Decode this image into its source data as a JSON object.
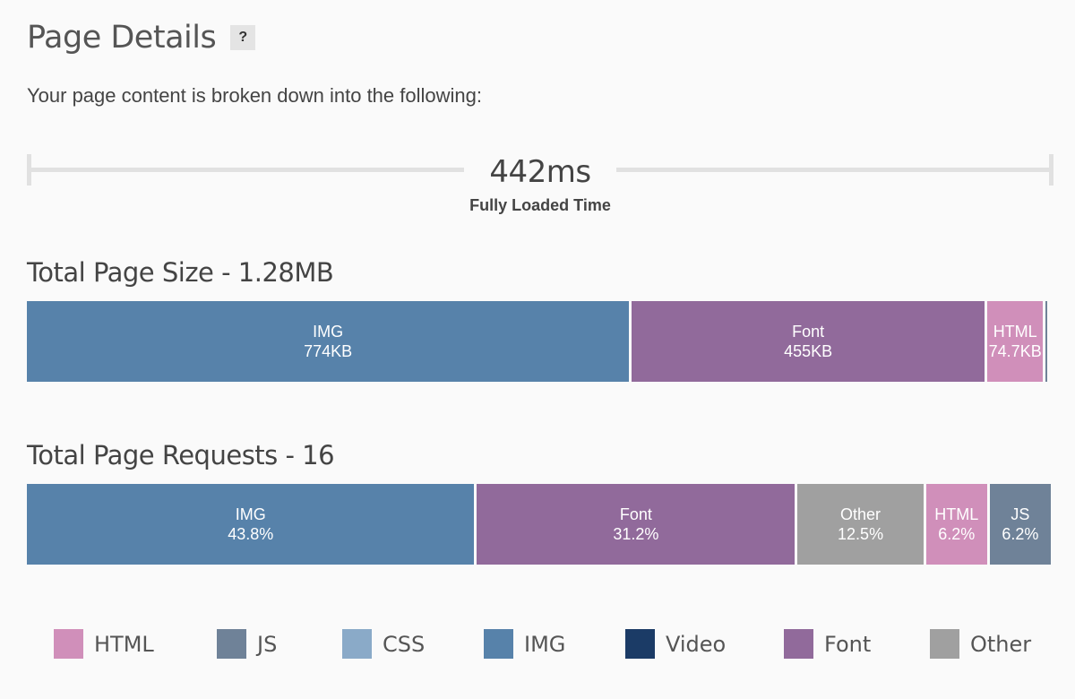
{
  "header": {
    "title": "Page Details",
    "help_label": "?",
    "subtitle": "Your page content is broken down into the following:"
  },
  "timing": {
    "value": "442ms",
    "label": "Fully Loaded Time"
  },
  "colors": {
    "HTML": "#d08fba",
    "JS": "#6f8298",
    "CSS": "#8aaac8",
    "IMG": "#5782aa",
    "Video": "#1b3b66",
    "Font": "#916a9b",
    "Other": "#a0a0a0"
  },
  "chart_data": [
    {
      "type": "bar",
      "title": "Total Page Size - 1.28MB",
      "orientation": "horizontal-stacked",
      "segments": [
        {
          "category": "IMG",
          "label": "IMG",
          "value_label": "774KB",
          "value": 774
        },
        {
          "category": "Font",
          "label": "Font",
          "value_label": "455KB",
          "value": 455
        },
        {
          "category": "HTML",
          "label": "HTML",
          "value_label": "74.7KB",
          "value": 74.7
        },
        {
          "category": "JS",
          "label": "",
          "value_label": "",
          "value": 6
        },
        {
          "category": "Other",
          "label": "",
          "value_label": "",
          "value": 4
        }
      ]
    },
    {
      "type": "bar",
      "title": "Total Page Requests - 16",
      "orientation": "horizontal-stacked",
      "segments": [
        {
          "category": "IMG",
          "label": "IMG",
          "value_label": "43.8%",
          "value": 43.8
        },
        {
          "category": "Font",
          "label": "Font",
          "value_label": "31.2%",
          "value": 31.2
        },
        {
          "category": "Other",
          "label": "Other",
          "value_label": "12.5%",
          "value": 12.5
        },
        {
          "category": "HTML",
          "label": "HTML",
          "value_label": "6.2%",
          "value": 6.2
        },
        {
          "category": "JS",
          "label": "JS",
          "value_label": "6.2%",
          "value": 6.2
        }
      ]
    }
  ],
  "legend": [
    {
      "label": "HTML",
      "icon": "html-swatch"
    },
    {
      "label": "JS",
      "icon": "js-swatch"
    },
    {
      "label": "CSS",
      "icon": "css-swatch"
    },
    {
      "label": "IMG",
      "icon": "img-swatch"
    },
    {
      "label": "Video",
      "icon": "video-swatch"
    },
    {
      "label": "Font",
      "icon": "font-swatch"
    },
    {
      "label": "Other",
      "icon": "other-swatch"
    }
  ]
}
